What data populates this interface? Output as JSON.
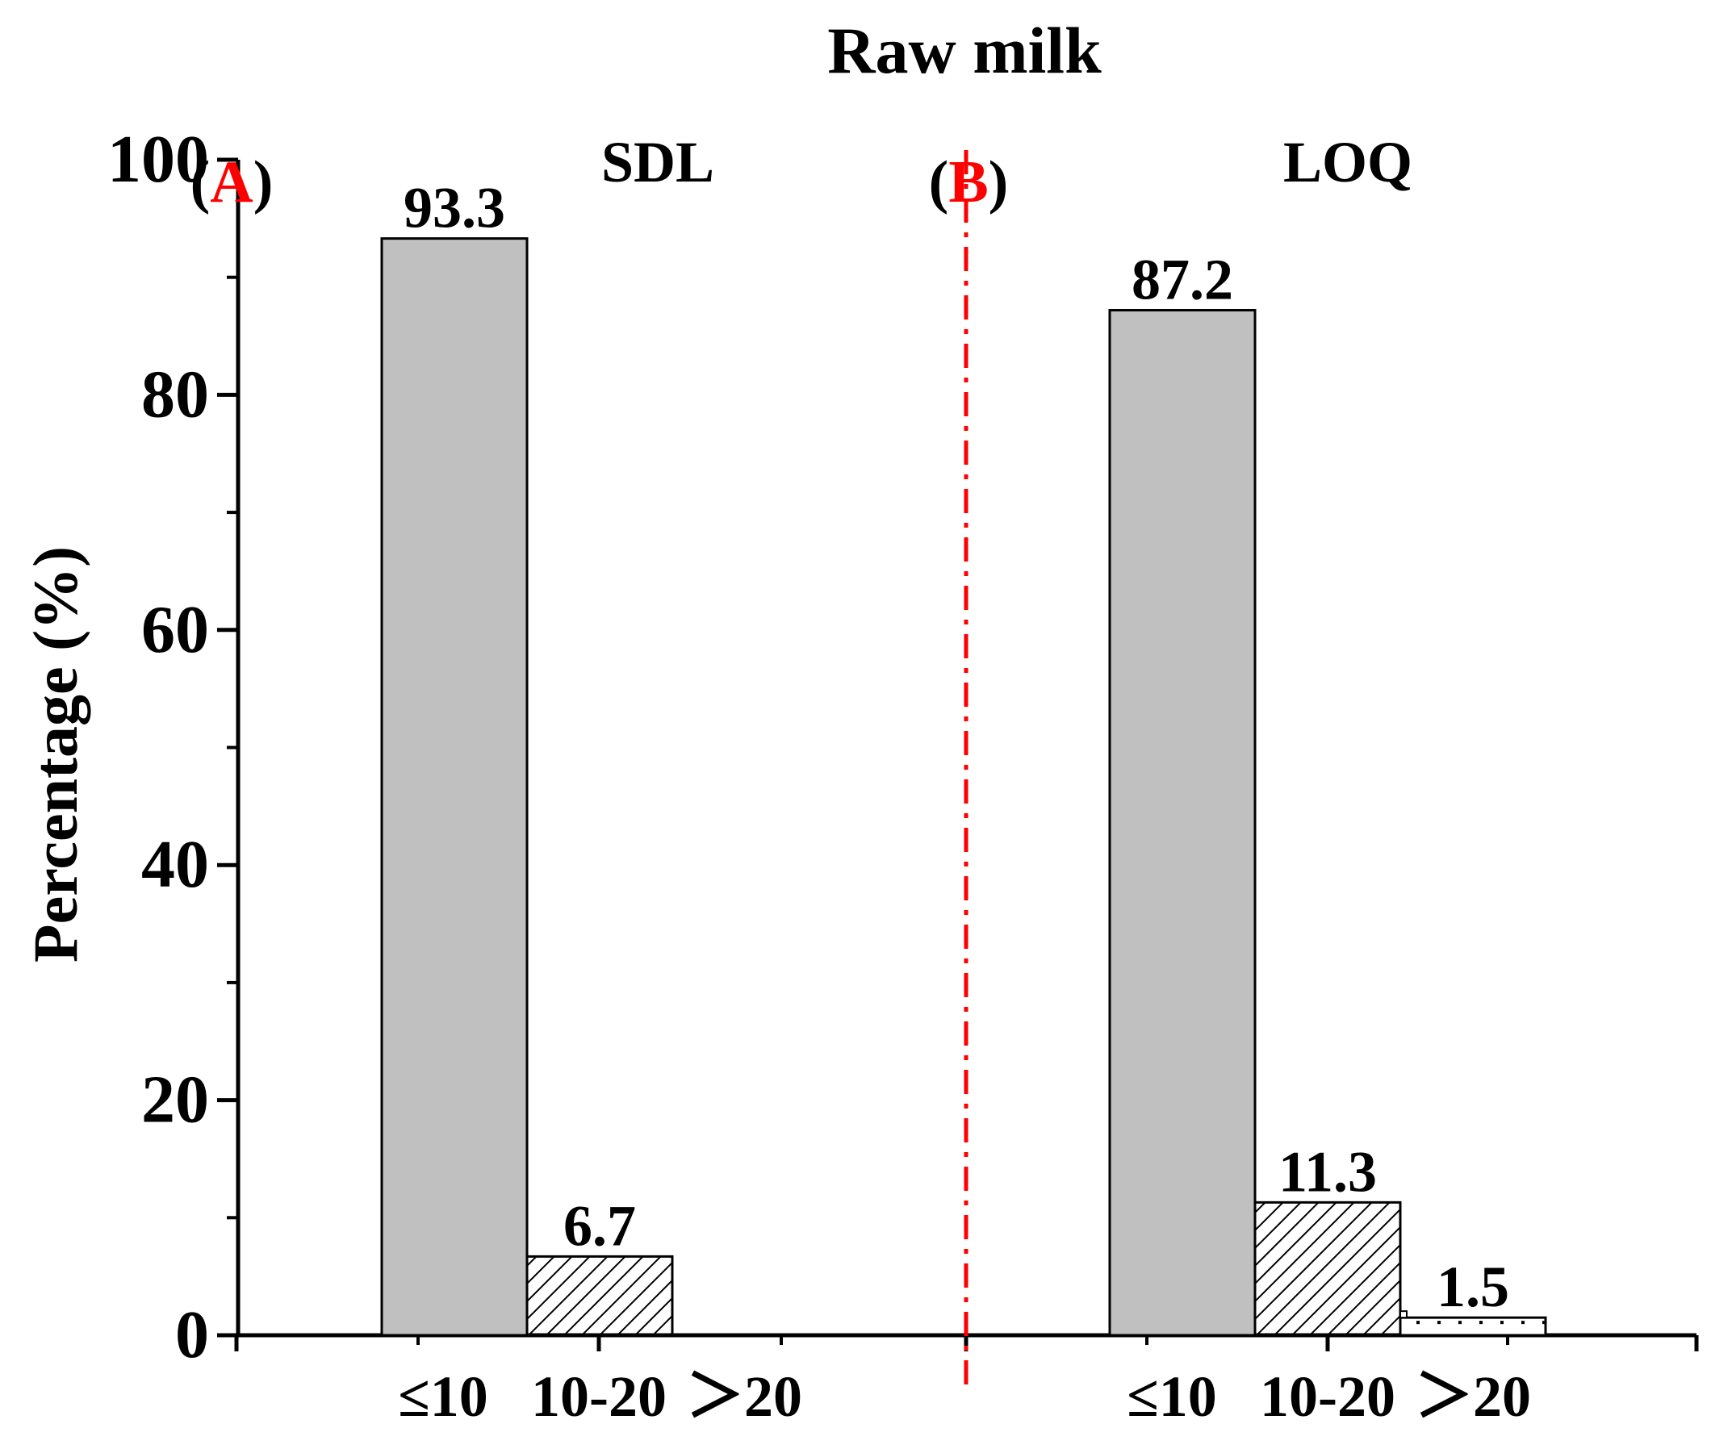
{
  "chart_data": {
    "type": "bar",
    "title": "Raw milk",
    "ylabel": "Percentage (%)",
    "xlabel": "",
    "ylim": [
      0,
      100
    ],
    "yticks": [
      0,
      20,
      40,
      60,
      80,
      100
    ],
    "yticks_minor": [
      10,
      30,
      50,
      70,
      90
    ],
    "categories": [
      "≤10",
      "10-20",
      "＞20"
    ],
    "panels": [
      {
        "letter": "A",
        "label": "SDL",
        "values": [
          93.3,
          6.7,
          null
        ],
        "value_labels": [
          "93.3",
          "6.7",
          ""
        ]
      },
      {
        "letter": "B",
        "label": "LOQ",
        "values": [
          87.2,
          11.3,
          1.5
        ],
        "value_labels": [
          "87.2",
          "11.3",
          "1.5"
        ]
      }
    ],
    "bar_styles": [
      "gray-fill",
      "diagonal-hatch",
      "dotted-top"
    ],
    "divider": "dash-dot",
    "colors": {
      "bar_fill": "#c0c0c0",
      "bar_stroke": "#000000",
      "panel_letter": "#ff0000",
      "divider": "#ff0000",
      "axis": "#000000"
    }
  }
}
